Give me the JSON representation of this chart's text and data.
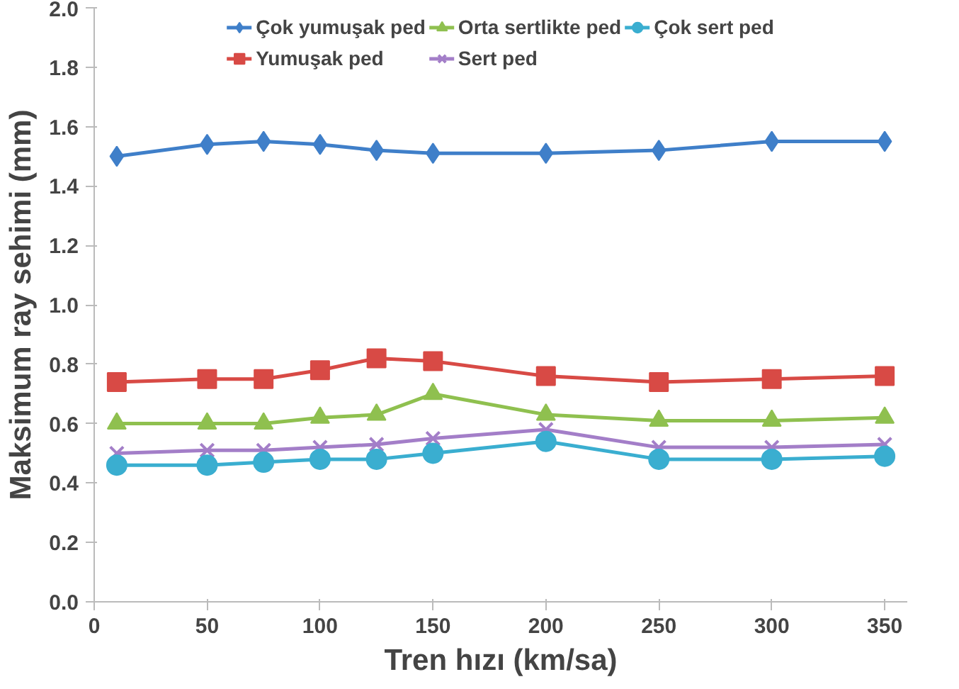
{
  "chart_data": {
    "type": "line",
    "xlabel": "Tren hızı (km/sa)",
    "ylabel": "Maksimum ray sehimi (mm)",
    "x": [
      10,
      50,
      75,
      100,
      125,
      150,
      200,
      250,
      300,
      350
    ],
    "series": [
      {
        "name": "Çok yumuşak ped",
        "color": "#3f7fc9",
        "marker": "diamond",
        "values": [
          1.5,
          1.54,
          1.55,
          1.54,
          1.52,
          1.51,
          1.51,
          1.52,
          1.55,
          1.55
        ]
      },
      {
        "name": "Yumuşak ped",
        "color": "#d84a45",
        "marker": "square",
        "values": [
          0.74,
          0.75,
          0.75,
          0.78,
          0.82,
          0.81,
          0.76,
          0.74,
          0.75,
          0.76
        ]
      },
      {
        "name": "Orta sertlikte ped",
        "color": "#8fc04f",
        "marker": "triangle",
        "values": [
          0.6,
          0.6,
          0.6,
          0.62,
          0.63,
          0.7,
          0.63,
          0.61,
          0.61,
          0.62
        ]
      },
      {
        "name": "Sert ped",
        "color": "#a37ec8",
        "marker": "cross",
        "values": [
          0.5,
          0.51,
          0.51,
          0.52,
          0.53,
          0.55,
          0.58,
          0.52,
          0.52,
          0.53
        ]
      },
      {
        "name": "Çok sert ped",
        "color": "#3aaed0",
        "marker": "circle",
        "values": [
          0.46,
          0.46,
          0.47,
          0.48,
          0.48,
          0.5,
          0.54,
          0.48,
          0.48,
          0.49
        ]
      }
    ],
    "xlim": [
      0,
      360
    ],
    "xticks": [
      0,
      50,
      100,
      150,
      200,
      250,
      300,
      350
    ],
    "ylim": [
      0,
      2.0
    ],
    "yticks": [
      {
        "value": 0,
        "label": "0.0"
      },
      {
        "value": 0.2,
        "label": "0.2"
      },
      {
        "value": 0.4,
        "label": "0.4"
      },
      {
        "value": 0.6,
        "label": "0.6"
      },
      {
        "value": 0.8,
        "label": "0.8"
      },
      {
        "value": 1.0,
        "label": "1.0"
      },
      {
        "value": 1.2,
        "label": "1.2"
      },
      {
        "value": 1.4,
        "label": "1.4"
      },
      {
        "value": 1.6,
        "label": "1.6"
      },
      {
        "value": 1.8,
        "label": "1.8"
      },
      {
        "value": 2.0,
        "label": "2.0"
      }
    ],
    "grid": false,
    "legend": "top",
    "line_style": "solid"
  }
}
